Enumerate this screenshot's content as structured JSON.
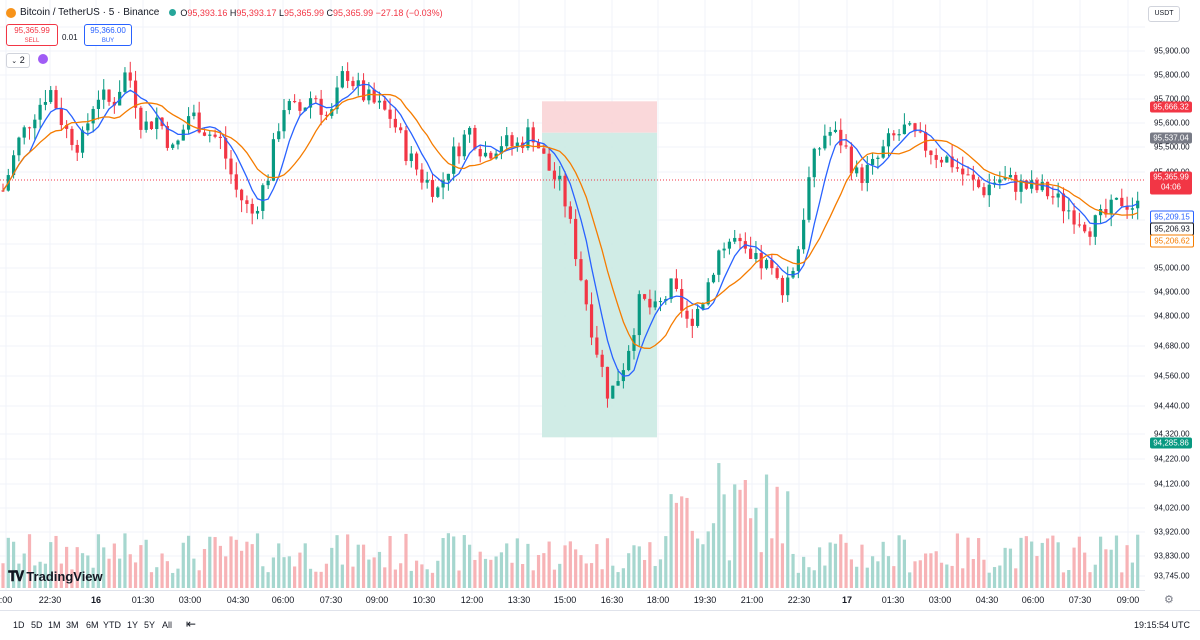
{
  "legend": {
    "symbol": "Bitcoin / TetherUS · 5 · Binance",
    "open_label": "O",
    "open": "95,393.16",
    "high_label": "H",
    "high": "95,393.17",
    "low_label": "L",
    "low": "95,365.99",
    "close_label": "C",
    "close": "95,365.99",
    "change": "−27.18 (−0.03%)"
  },
  "trade": {
    "sell_price": "95,365.99",
    "sell_label": "SELL",
    "spread": "0.01",
    "buy_price": "95,366.00",
    "buy_label": "BUY"
  },
  "indicator_count": "2",
  "currency": "USDT",
  "price_axis": [
    "95,900.00",
    "95,800.00",
    "95,700.00",
    "95,600.00",
    "95,500.00",
    "95,400.00",
    "95,300.00",
    "95,100.00",
    "95,000.00",
    "94,900.00",
    "94,800.00",
    "94,680.00",
    "94,560.00",
    "94,440.00",
    "94,320.00",
    "94,220.00",
    "94,120.00",
    "94,020.00",
    "93,920.00",
    "93,830.00",
    "93,745.00"
  ],
  "price_tags": {
    "tp": "95,666.32",
    "entry": "95,537.04",
    "last": "95,365.99",
    "countdown": "04:06",
    "ma_blue": "95,209.15",
    "ma_current": "95,206.93",
    "ma_orange": "95,206.62",
    "sl": "94,285.86"
  },
  "time_axis": [
    ":00",
    "22:30",
    "16",
    "01:30",
    "03:00",
    "04:30",
    "06:00",
    "07:30",
    "09:00",
    "10:30",
    "12:00",
    "13:30",
    "15:00",
    "16:30",
    "18:00",
    "19:30",
    "21:00",
    "22:30",
    "17",
    "01:30",
    "03:00",
    "04:30",
    "06:00",
    "07:30",
    "09:00"
  ],
  "timeframes": [
    "1D",
    "5D",
    "1M",
    "3M",
    "6M",
    "YTD",
    "1Y",
    "5Y",
    "All"
  ],
  "clock": "19:15:54 UTC",
  "brand": "TradingView",
  "colors": {
    "up": "#26a69a",
    "down": "#ef5350",
    "ma_fast": "#2962ff",
    "ma_slow": "#f57c00",
    "profit_zone": "#cbeae3",
    "loss_zone": "#f9d4d6"
  },
  "chart_data": {
    "type": "candlestick",
    "title": "Bitcoin / TetherUS · 5 · Binance",
    "ylim": [
      93700,
      96000
    ],
    "x_labels": [
      ":00",
      "22:30",
      "16",
      "01:30",
      "03:00",
      "04:30",
      "06:00",
      "07:30",
      "09:00",
      "10:30",
      "12:00",
      "13:30",
      "15:00",
      "16:30",
      "18:00",
      "19:30",
      "21:00",
      "22:30",
      "17",
      "01:30",
      "03:00",
      "04:30",
      "06:00",
      "07:30",
      "09:00"
    ],
    "price_path": [
      95300,
      95500,
      95620,
      95720,
      95550,
      95480,
      95700,
      95650,
      95800,
      95560,
      95600,
      95450,
      95620,
      95550,
      95500,
      95300,
      95200,
      95350,
      95650,
      95620,
      95700,
      95580,
      95800,
      95700,
      95650,
      95600,
      95450,
      95350,
      95300,
      95450,
      95550,
      95450,
      95500,
      95480,
      95550,
      95400,
      95300,
      95000,
      94700,
      94450,
      94600,
      94850,
      94800,
      94900,
      94750,
      94850,
      95050,
      95100,
      95000,
      95000,
      94900,
      95000,
      95400,
      95550,
      95500,
      95350,
      95400,
      95500,
      95550,
      95500,
      95450,
      95420,
      95350,
      95300,
      95350,
      95330,
      95310,
      95300,
      95250,
      95200,
      95150,
      95200,
      95260,
      95230
    ]
  }
}
